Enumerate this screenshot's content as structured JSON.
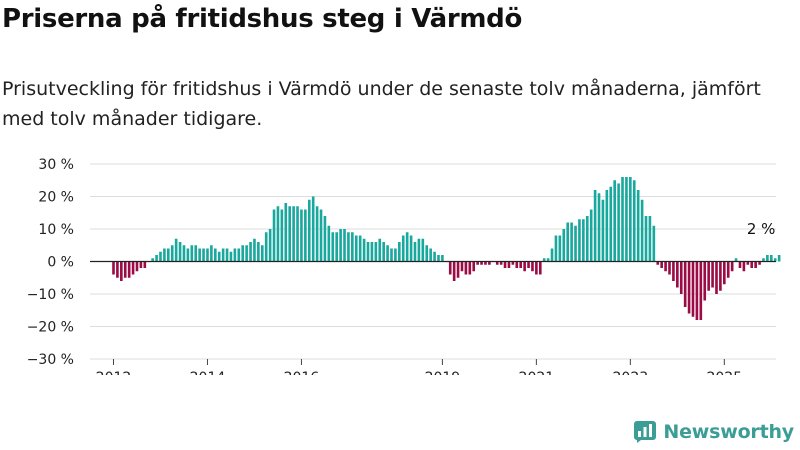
{
  "title": "Priserna på fritidshus steg i Värmdö",
  "subtitle": "Prisutveckling för fritidshus i Värmdö under de senaste tolv månaderna, jämfört med tolv månader tidigare.",
  "brand": {
    "name": "Newsworthy",
    "icon": "newsworthy-logo-icon"
  },
  "colors": {
    "positive": "#19a89e",
    "negative": "#9b0b45",
    "grid": "#dddddd",
    "baseline": "#222222",
    "text": "#222222"
  },
  "chart_data": {
    "type": "bar",
    "xlabel": "",
    "ylabel": "",
    "ylim": [
      -30,
      30
    ],
    "yticks": [
      30,
      20,
      10,
      0,
      -10,
      -20,
      -30
    ],
    "ytick_labels": [
      "30 %",
      "20 %",
      "10 %",
      "0 %",
      "−10 %",
      "−20 %",
      "−30 %"
    ],
    "xlim": [
      2011.5,
      2026.1
    ],
    "xticks": [
      2012,
      2014,
      2016,
      2019,
      2021,
      2023,
      2025
    ],
    "xtick_labels": [
      "2012",
      "2014",
      "2016",
      "2019",
      "2021",
      "2023",
      "2025"
    ],
    "start": "2012-01",
    "frequency": "monthly",
    "annotation": {
      "text": "2 %",
      "x": 2025.4,
      "y": 2
    },
    "values": [
      -4,
      -5,
      -6,
      -5,
      -5,
      -4,
      -3,
      -2,
      -2,
      0,
      1,
      2,
      3,
      4,
      4,
      5,
      7,
      6,
      5,
      4,
      5,
      5,
      4,
      4,
      4,
      5,
      4,
      3,
      4,
      4,
      3,
      4,
      4,
      5,
      5,
      6,
      7,
      6,
      5,
      9,
      10,
      16,
      17,
      16,
      18,
      17,
      17,
      17,
      16,
      16,
      19,
      20,
      17,
      16,
      14,
      11,
      9,
      9,
      10,
      10,
      9,
      9,
      8,
      8,
      7,
      6,
      6,
      6,
      7,
      6,
      5,
      4,
      4,
      6,
      8,
      9,
      8,
      6,
      7,
      7,
      5,
      4,
      3,
      2,
      2,
      0,
      -4,
      -6,
      -5,
      -3,
      -4,
      -4,
      -3,
      -1,
      -1,
      -1,
      -1,
      0,
      -1,
      -1,
      -2,
      -2,
      -1,
      -2,
      -2,
      -3,
      -2,
      -3,
      -4,
      -4,
      1,
      1,
      4,
      8,
      8,
      10,
      12,
      12,
      11,
      13,
      13,
      14,
      16,
      22,
      21,
      19,
      22,
      23,
      25,
      24,
      26,
      26,
      26,
      25,
      22,
      19,
      14,
      14,
      11,
      -1,
      -2,
      -3,
      -4,
      -6,
      -8,
      -10,
      -14,
      -16,
      -17,
      -18,
      -18,
      -12,
      -9,
      -8,
      -10,
      -9,
      -7,
      -5,
      -3,
      1,
      -2,
      -3,
      -1,
      -2,
      -2,
      -1,
      1,
      2,
      2,
      1,
      2
    ]
  }
}
